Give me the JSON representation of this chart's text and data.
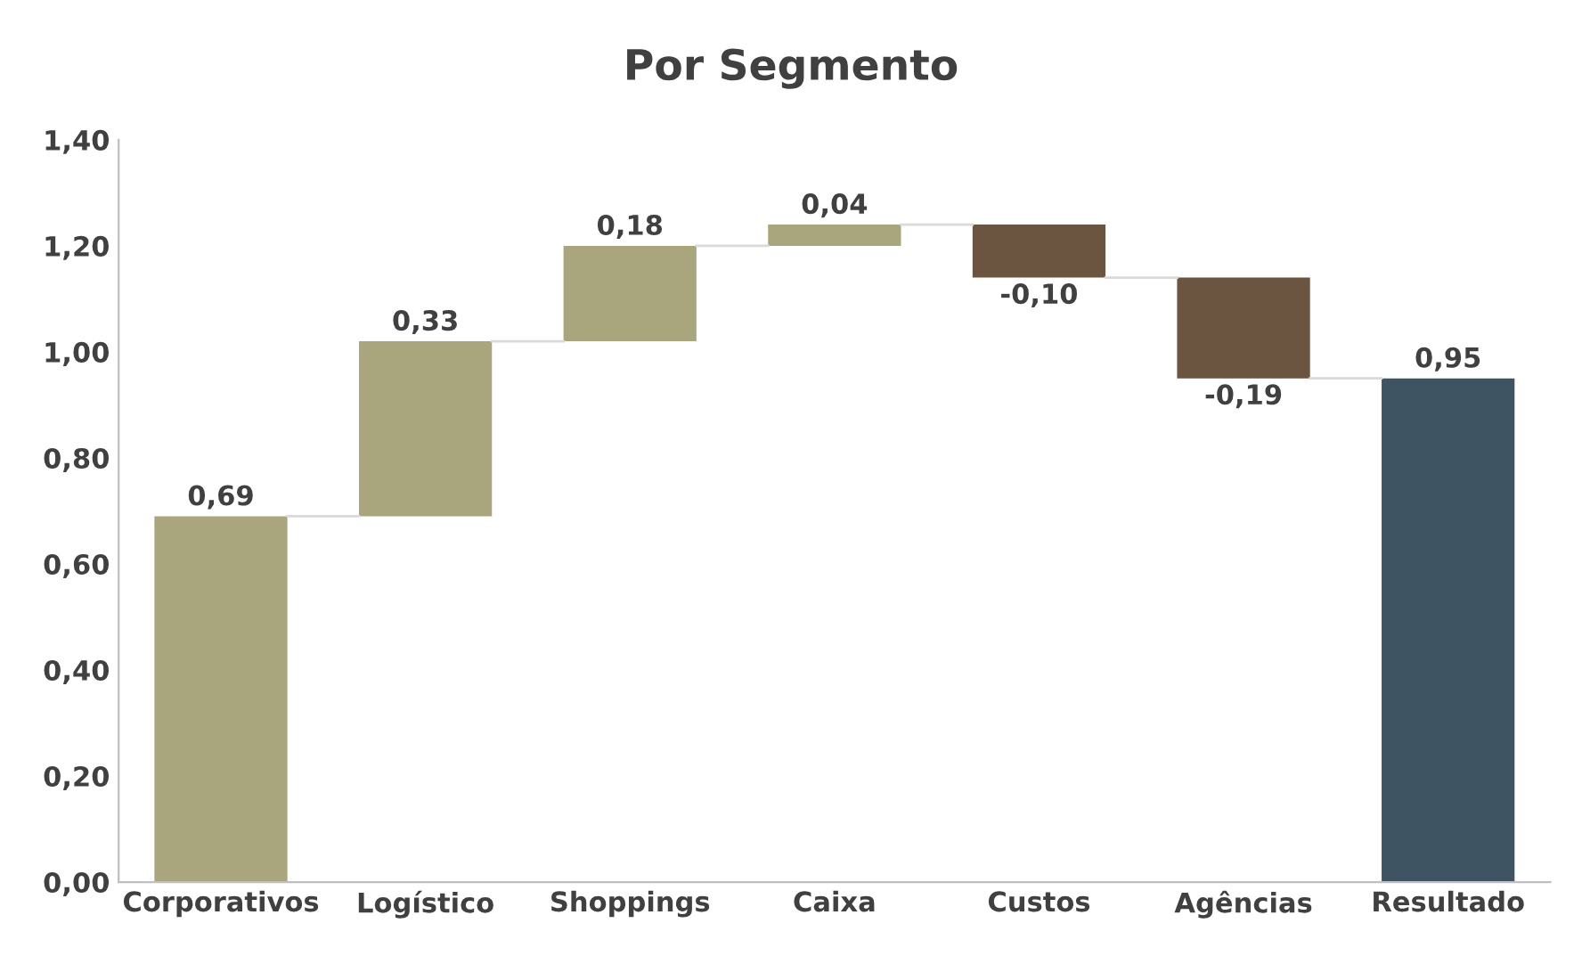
{
  "chart_data": {
    "type": "bar",
    "title": "Por Segmento",
    "categories": [
      "Corporativos",
      "Logístico",
      "Shoppings",
      "Caixa",
      "Custos",
      "Agências",
      "Resultado"
    ],
    "values": [
      0.69,
      0.33,
      0.18,
      0.04,
      -0.1,
      -0.19,
      0.95
    ],
    "base": [
      0,
      0.69,
      1.02,
      1.2,
      1.24,
      1.14,
      0
    ],
    "colors": [
      "#a9a57c",
      "#a9a57c",
      "#a9a57c",
      "#a9a57c",
      "#6b5540",
      "#6b5540",
      "#3e5463"
    ],
    "value_labels": [
      "0,69",
      "0,33",
      "0,18",
      "0,04",
      "-0,10",
      "-0,19",
      "0,95"
    ],
    "ylim": [
      0,
      1.4
    ],
    "yticks": [
      {
        "value": 0,
        "label": "0,00"
      },
      {
        "value": 0.2,
        "label": "0,20"
      },
      {
        "value": 0.4,
        "label": "0,40"
      },
      {
        "value": 0.6,
        "label": "0,60"
      },
      {
        "value": 0.8,
        "label": "0,80"
      },
      {
        "value": 1.0,
        "label": "1,00"
      },
      {
        "value": 1.2,
        "label": "1,20"
      },
      {
        "value": 1.4,
        "label": "1,40"
      }
    ],
    "grid": false,
    "legend": false
  }
}
